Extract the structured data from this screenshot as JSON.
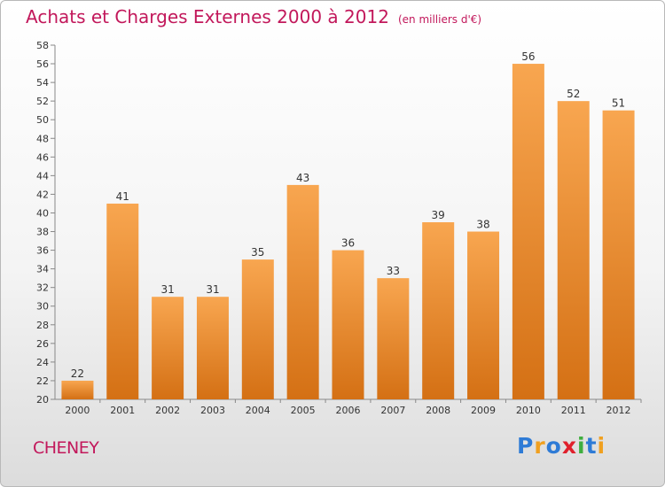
{
  "title": "Achats et Charges Externes 2000 à 2012",
  "unit": "(en milliers d'€)",
  "commune": "CHENEY",
  "logo": {
    "text": "Proxiti",
    "letters": [
      {
        "char": "P",
        "color": "#2e7bd6"
      },
      {
        "char": "r",
        "color": "#f0a020"
      },
      {
        "char": "o",
        "color": "#2e7bd6"
      },
      {
        "char": "x",
        "color": "#e0202c"
      },
      {
        "char": "i",
        "color": "#3fae3f"
      },
      {
        "char": "t",
        "color": "#2e7bd6"
      },
      {
        "char": "i",
        "color": "#f0a020"
      }
    ]
  },
  "colors": {
    "bar_top": "#f8a650",
    "bar_bottom": "#d47014",
    "title": "#c2185b"
  },
  "chart_data": {
    "type": "bar",
    "title": "Achats et Charges Externes 2000 à 2012",
    "subtitle": "(en milliers d'€)",
    "categories": [
      "2000",
      "2001",
      "2002",
      "2003",
      "2004",
      "2005",
      "2006",
      "2007",
      "2008",
      "2009",
      "2010",
      "2011",
      "2012"
    ],
    "values": [
      22,
      41,
      31,
      31,
      35,
      43,
      36,
      33,
      39,
      38,
      56,
      52,
      51
    ],
    "ylim": [
      20,
      58
    ],
    "yticks": [
      20,
      22,
      24,
      26,
      28,
      30,
      32,
      34,
      36,
      38,
      40,
      42,
      44,
      46,
      48,
      50,
      52,
      54,
      56,
      58
    ],
    "grid": false,
    "xlabel": "",
    "ylabel": ""
  }
}
